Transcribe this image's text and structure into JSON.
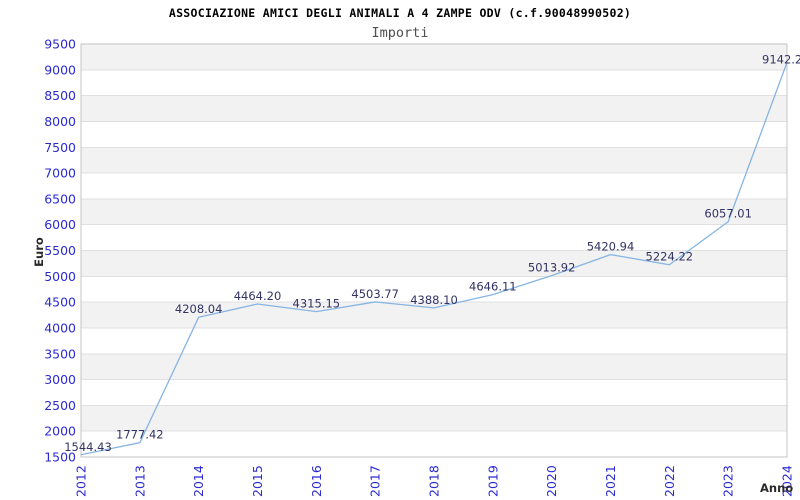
{
  "chart_data": {
    "type": "line",
    "title": "ASSOCIAZIONE AMICI DEGLI ANIMALI A 4 ZAMPE ODV (c.f.90048990502)",
    "subtitle": "Importi",
    "xlabel": "Anno",
    "ylabel": "Euro",
    "categories": [
      "2012",
      "2013",
      "2014",
      "2015",
      "2016",
      "2017",
      "2018",
      "2019",
      "2020",
      "2021",
      "2022",
      "2023",
      "2024"
    ],
    "values": [
      1544.43,
      1777.42,
      4208.04,
      4464.2,
      4315.15,
      4503.77,
      4388.1,
      4646.11,
      5013.92,
      5420.94,
      5224.22,
      6057.01,
      9142.2
    ],
    "point_labels": [
      "1544.43",
      "1777.42",
      "4208.04",
      "4464.20",
      "4315.15",
      "4503.77",
      "4388.10",
      "4646.11",
      "5013.92",
      "5420.94",
      "5224.22",
      "6057.01",
      "9142.2"
    ],
    "ylim": [
      1500,
      9500
    ],
    "ytick_step": 500,
    "grid": true,
    "legend": null,
    "colors": {
      "line": "#87b5e3",
      "tick_text": "#2b2bd0",
      "point_label": "#333366",
      "band_gray": "#f2f2f2",
      "band_white": "#ffffff",
      "grid_line": "#e0e0e0",
      "border": "#c4c4c4",
      "title": "#000000",
      "subtitle": "#4f4f4f",
      "axis_label": "#2a2a2a"
    }
  }
}
